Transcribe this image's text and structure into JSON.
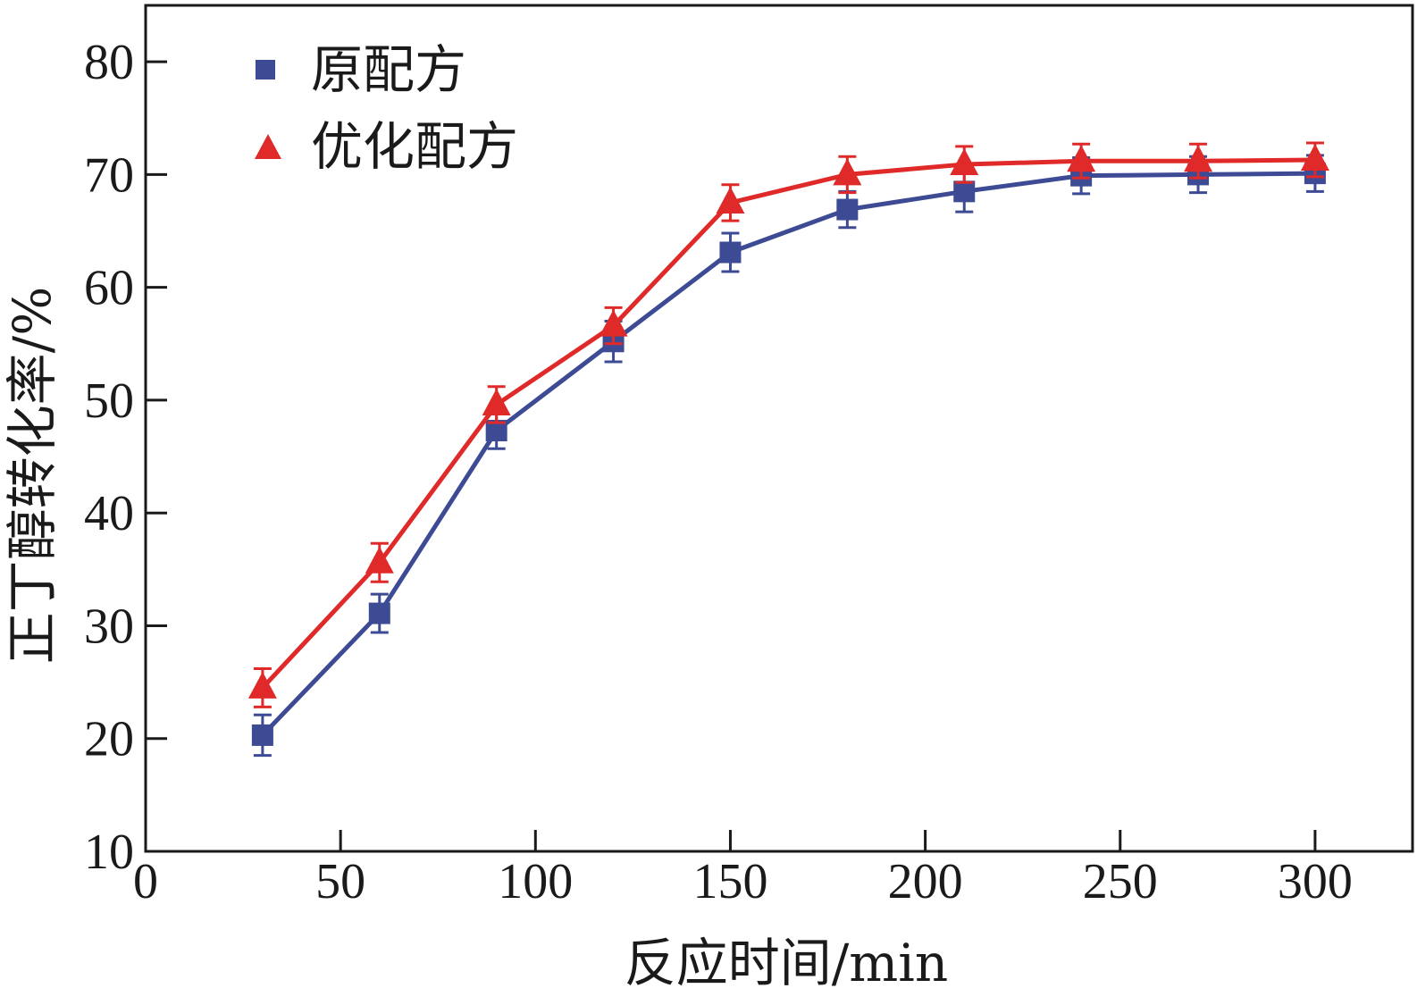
{
  "chart_data": {
    "type": "line",
    "title": "",
    "xlabel": "反应时间/min",
    "ylabel": "正丁醇转化率/%",
    "xlim": [
      0,
      325
    ],
    "ylim": [
      10,
      85
    ],
    "x_ticks": [
      0,
      50,
      100,
      150,
      200,
      250,
      300
    ],
    "y_ticks": [
      10,
      20,
      30,
      40,
      50,
      60,
      70,
      80
    ],
    "x_tick_labels": [
      "0",
      "50",
      "100",
      "150",
      "200",
      "250",
      "300"
    ],
    "y_tick_labels": [
      "10",
      "20",
      "30",
      "40",
      "50",
      "60",
      "70",
      "80"
    ],
    "grid": false,
    "legend_position": "top-left",
    "x": [
      30,
      60,
      90,
      120,
      150,
      180,
      210,
      240,
      270,
      300
    ],
    "series": [
      {
        "name": "原配方",
        "marker": "square",
        "color": "#3d4a94",
        "values": [
          20.3,
          31.1,
          47.3,
          55.2,
          63.1,
          66.9,
          68.5,
          69.9,
          70.0,
          70.1
        ],
        "errors": [
          1.8,
          1.7,
          1.6,
          1.8,
          1.7,
          1.6,
          1.8,
          1.6,
          1.6,
          1.6
        ]
      },
      {
        "name": "优化配方",
        "marker": "triangle",
        "color": "#e02a2a",
        "values": [
          24.5,
          35.6,
          49.6,
          56.6,
          67.5,
          70.0,
          70.9,
          71.2,
          71.2,
          71.3
        ],
        "errors": [
          1.7,
          1.7,
          1.6,
          1.6,
          1.6,
          1.6,
          1.6,
          1.5,
          1.5,
          1.5
        ]
      }
    ]
  }
}
